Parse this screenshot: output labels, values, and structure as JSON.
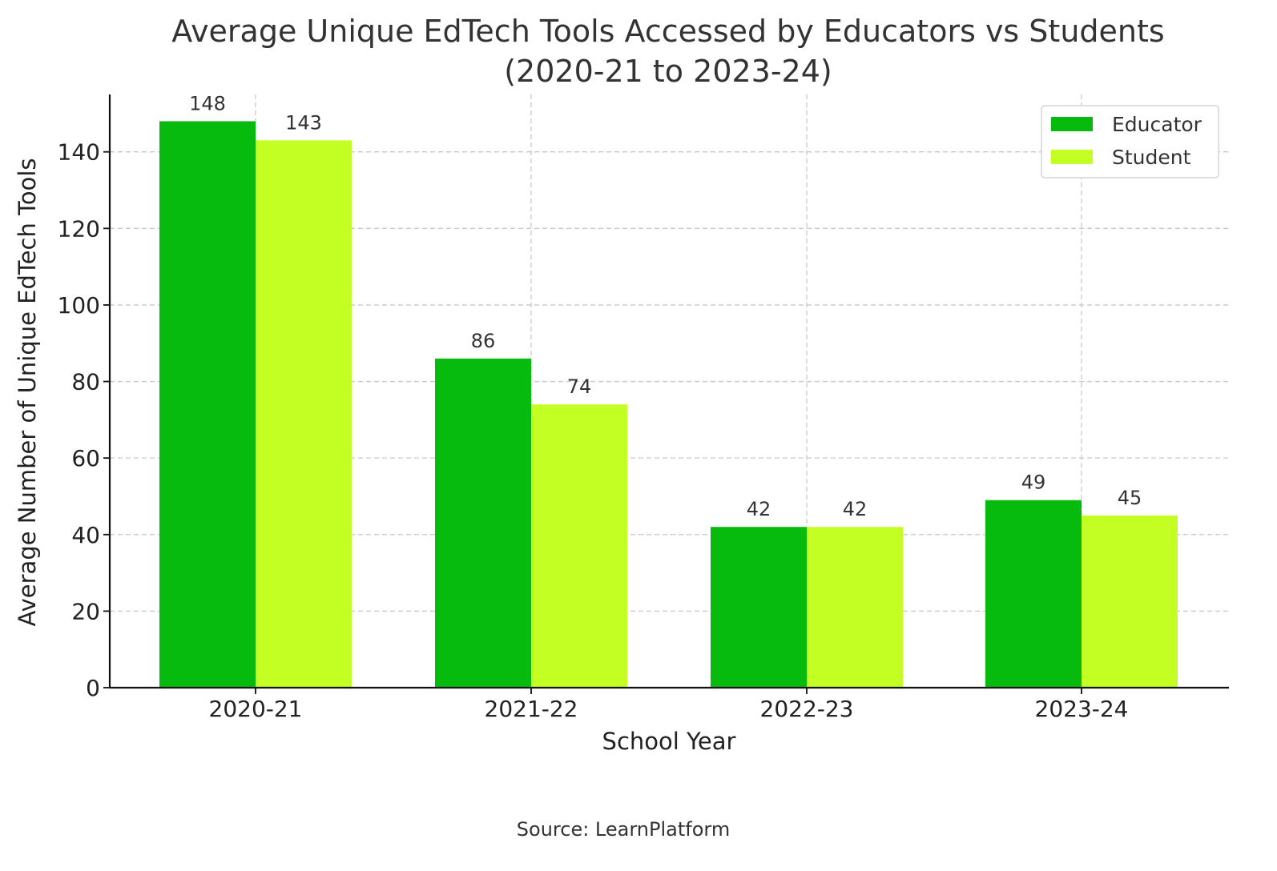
{
  "chart_data": {
    "type": "bar",
    "title": "Average Unique EdTech Tools Accessed by Educators vs Students",
    "subtitle": "(2020-21 to 2023-24)",
    "xlabel": "School Year",
    "ylabel": "Average Number of Unique EdTech Tools",
    "categories": [
      "2020-21",
      "2021-22",
      "2022-23",
      "2023-24"
    ],
    "series": [
      {
        "name": "Educator",
        "values": [
          148,
          86,
          42,
          49
        ],
        "color": "#06bb0e"
      },
      {
        "name": "Student",
        "values": [
          143,
          74,
          42,
          45
        ],
        "color": "#c3ff23"
      }
    ],
    "ylim": [
      0,
      155
    ],
    "yticks": [
      0,
      20,
      40,
      60,
      80,
      100,
      120,
      140
    ],
    "grid": true,
    "legend_position": "top-right",
    "source": "Source: LearnPlatform"
  }
}
